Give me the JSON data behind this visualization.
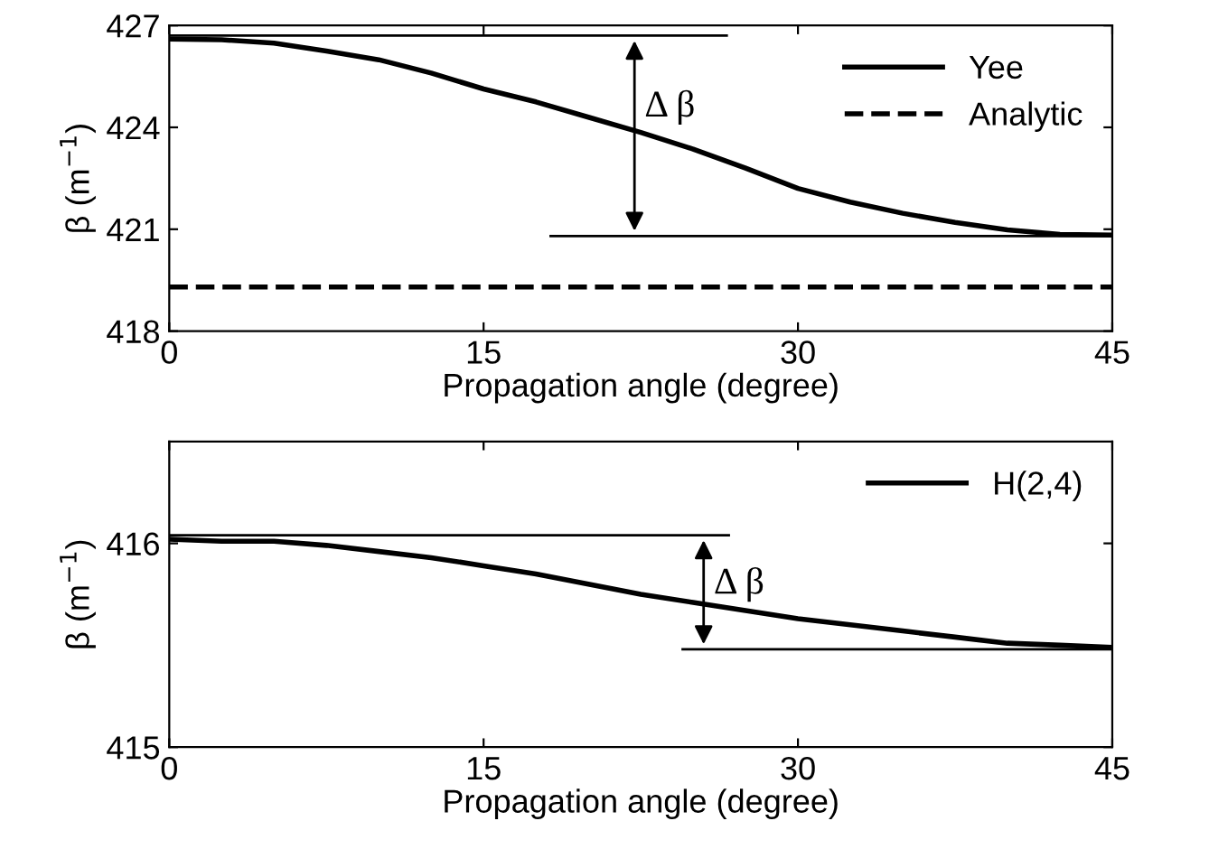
{
  "chart_data": [
    {
      "type": "line",
      "xlabel": "Propagation angle (degree)",
      "ylabel": "β (m$^{−1}$)",
      "xlim": [
        0,
        45
      ],
      "xticks": [
        0,
        15,
        30,
        45
      ],
      "ylim": [
        418,
        427
      ],
      "yticks": [
        418,
        421,
        424,
        427
      ],
      "legend": "top right",
      "grid": false,
      "series": [
        {
          "name": "Yee",
          "color": "#000000",
          "line_style": "solid",
          "x": [
            0,
            2.5,
            5,
            7.5,
            10,
            12.5,
            15,
            17.5,
            20,
            22.5,
            25,
            27.5,
            30,
            32.5,
            35,
            37.5,
            40,
            42.5,
            45
          ],
          "values": [
            426.6,
            426.58,
            426.48,
            426.25,
            425.99,
            425.6,
            425.13,
            424.75,
            424.3,
            423.85,
            423.36,
            422.8,
            422.2,
            421.8,
            421.47,
            421.2,
            420.98,
            420.85,
            420.83
          ]
        },
        {
          "name": "Analytic",
          "color": "#000000",
          "line_style": "dashed",
          "x": [
            0,
            45
          ],
          "values": [
            419.3,
            419.3
          ]
        },
        {
          "color": "#000000",
          "line_style": "solid",
          "x": [
            0,
            26.6
          ],
          "values": [
            426.7,
            426.7
          ]
        },
        {
          "color": "#000000",
          "line_style": "solid",
          "x": [
            18.2,
            45
          ],
          "values": [
            420.8,
            420.8
          ]
        }
      ],
      "annotations": [
        {
          "text": "Δ β",
          "x": 22.2,
          "y": 424
        }
      ]
    },
    {
      "type": "line",
      "xlabel": "Propagation angle (degree)",
      "ylabel": "β (m$^{−1}$)",
      "xlim": [
        0,
        45
      ],
      "xticks": [
        0,
        15,
        30,
        45
      ],
      "ylim": [
        415,
        416.5
      ],
      "yticks": [
        415,
        416
      ],
      "legend": "top right",
      "grid": false,
      "series": [
        {
          "name": "H(2,4)",
          "color": "#000000",
          "line_style": "solid",
          "x": [
            0,
            2.5,
            5,
            7.5,
            10,
            12.5,
            15,
            17.5,
            20,
            22.5,
            25,
            27.5,
            30,
            32.5,
            35,
            37.5,
            40,
            42.5,
            45
          ],
          "values": [
            416.02,
            416.01,
            416.01,
            415.99,
            415.96,
            415.93,
            415.89,
            415.85,
            415.8,
            415.75,
            415.71,
            415.67,
            415.63,
            415.6,
            415.57,
            415.54,
            415.51,
            415.5,
            415.49
          ]
        },
        {
          "color": "#000000",
          "line_style": "solid",
          "x": [
            0,
            26.7
          ],
          "values": [
            416.04,
            416.04
          ]
        },
        {
          "color": "#000000",
          "line_style": "solid",
          "x": [
            24.5,
            45
          ],
          "values": [
            415.48,
            415.48
          ]
        }
      ],
      "annotations": [
        {
          "text": "Δ β",
          "x": 25.5,
          "y": 415.7
        }
      ]
    }
  ]
}
